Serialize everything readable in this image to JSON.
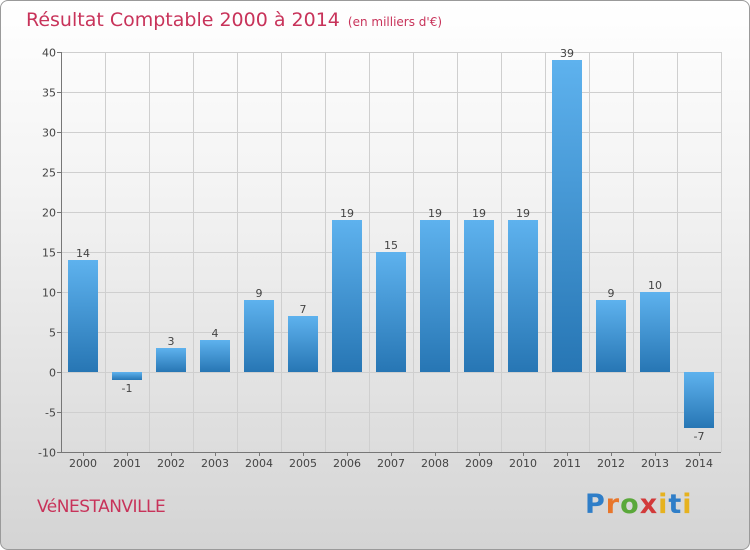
{
  "chart_data": {
    "type": "bar",
    "title": "Résultat Comptable 2000 à 2014",
    "subtitle": "(en milliers d'€)",
    "categories": [
      "2000",
      "2001",
      "2002",
      "2003",
      "2004",
      "2005",
      "2006",
      "2007",
      "2008",
      "2009",
      "2010",
      "2011",
      "2012",
      "2013",
      "2014"
    ],
    "values": [
      14,
      -1,
      3,
      4,
      9,
      7,
      19,
      15,
      19,
      19,
      19,
      39,
      9,
      10,
      -7
    ],
    "ylim": [
      -10,
      40
    ],
    "yticks": [
      -10,
      -5,
      0,
      5,
      10,
      15,
      20,
      25,
      30,
      35,
      40
    ],
    "grid": true,
    "xlabel": "",
    "ylabel": ""
  },
  "commune": "VéNESTANVILLE",
  "logo": {
    "p": "P",
    "r": "r",
    "o": "o",
    "x": "x",
    "i": "i",
    "t": "t",
    "i2": "i"
  },
  "colors": {
    "title": "#c8335a",
    "bar_top": "#5aaeea",
    "bar_bottom": "#2a7ab8",
    "grid": "#cfcfcf"
  }
}
